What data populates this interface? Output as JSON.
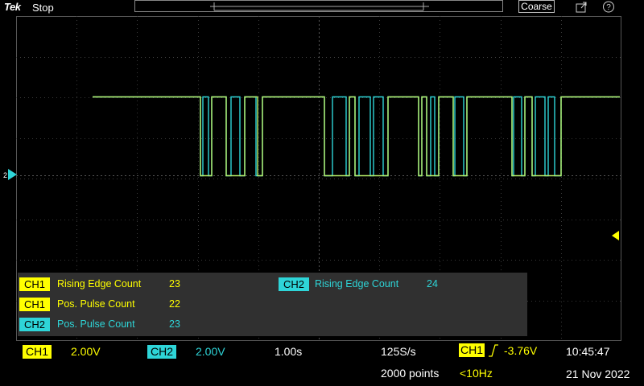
{
  "top_bar": {
    "brand": "Tek",
    "run_state": "Stop",
    "coarse_label": "Coarse"
  },
  "measurements": {
    "ch1_rising_label": "CH1",
    "ch1_rising_name": "Rising Edge Count",
    "ch1_rising_value": "23",
    "ch2_rising_label": "CH2",
    "ch2_rising_name": "Rising Edge Count",
    "ch2_rising_value": "24",
    "ch1_pulse_label": "CH1",
    "ch1_pulse_name": "Pos. Pulse Count",
    "ch1_pulse_value": "22",
    "ch2_pulse_label": "CH2",
    "ch2_pulse_name": "Pos. Pulse Count",
    "ch2_pulse_value": "23"
  },
  "status_bar": {
    "ch1_label": "CH1",
    "ch1_scale": "2.00V",
    "ch2_label": "CH2",
    "ch2_scale": "2.00V",
    "timebase": "1.00s",
    "sample_rate": "125S/s",
    "record_length": "2000 points",
    "trigger_source": "CH1",
    "trigger_level": "-3.76V",
    "trigger_freq": "<10Hz",
    "time": "10:45:47",
    "date": "21 Nov 2022"
  },
  "colors": {
    "ch1": "#ffff00",
    "ch2": "#2ed5d8",
    "trace_high_mix": "#b9f06a"
  },
  "traces": {
    "ch2_high_intervals": [
      [
        115,
        249
      ],
      [
        252,
        259
      ],
      [
        263,
        281
      ],
      [
        287,
        298
      ],
      [
        304,
        318
      ],
      [
        326,
        403
      ],
      [
        413,
        430
      ],
      [
        434,
        441
      ],
      [
        446,
        460
      ],
      [
        464,
        476
      ],
      [
        482,
        520
      ],
      [
        524,
        530
      ],
      [
        535,
        540
      ],
      [
        545,
        563
      ],
      [
        565,
        576
      ],
      [
        580,
        636
      ],
      [
        638,
        648
      ],
      [
        652,
        661
      ],
      [
        665,
        677
      ],
      [
        681,
        689
      ],
      [
        697,
        770
      ]
    ],
    "ch1_high_intervals": [
      [
        115,
        249
      ],
      [
        263,
        281
      ],
      [
        304,
        320
      ],
      [
        326,
        403
      ],
      [
        434,
        441
      ],
      [
        482,
        520
      ],
      [
        524,
        530
      ],
      [
        545,
        563
      ],
      [
        580,
        636
      ],
      [
        652,
        661
      ],
      [
        697,
        770
      ]
    ]
  }
}
